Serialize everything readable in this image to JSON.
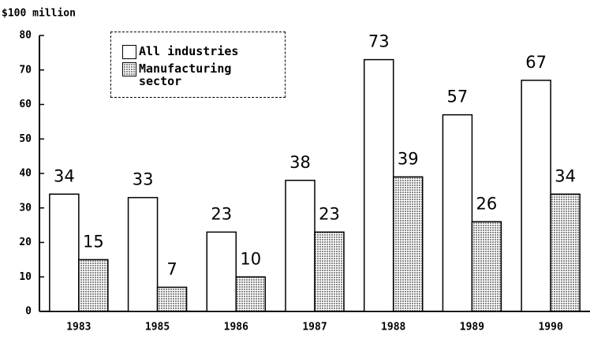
{
  "chart_data": {
    "type": "bar",
    "y_label": "$100 million",
    "categories": [
      "1983",
      "1985",
      "1986",
      "1987",
      "1988",
      "1989",
      "1990"
    ],
    "series": [
      {
        "name": "All industries",
        "color": "#ffffff",
        "values": [
          34,
          33,
          23,
          38,
          73,
          57,
          67
        ]
      },
      {
        "name": "Manufacturing sector",
        "color": "#8a8a8a",
        "values": [
          15,
          7,
          10,
          23,
          39,
          26,
          34
        ]
      }
    ],
    "ylim": [
      0,
      80
    ],
    "yticks": [
      0,
      10,
      20,
      30,
      40,
      50,
      60,
      70,
      80
    ],
    "grid": false,
    "legend": "top-left"
  }
}
